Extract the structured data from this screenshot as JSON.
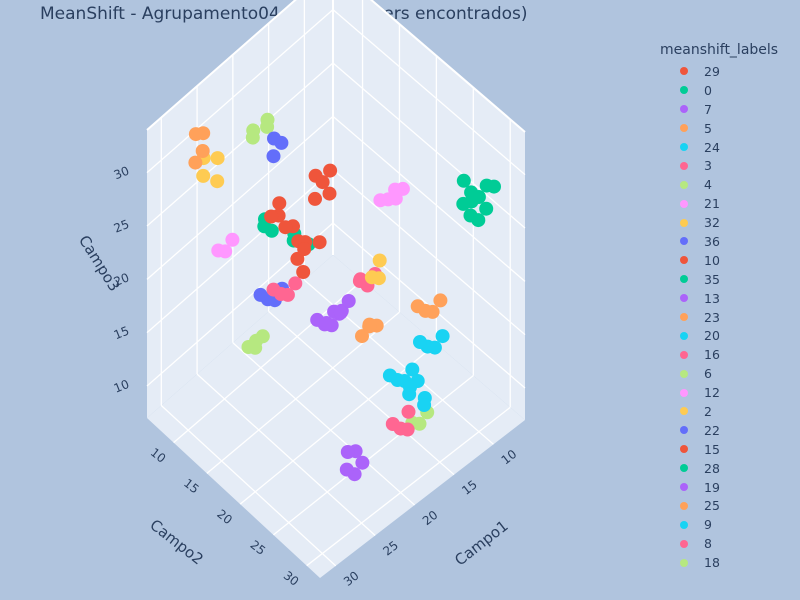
{
  "chart_data": {
    "type": "scatter3d",
    "title": "MeanShift - Agrupamento04 (k=37 clusters encontrados)",
    "xlabel": "Campo1",
    "ylabel": "Campo2",
    "zlabel": "Campo3",
    "x_ticks": [
      "10",
      "15",
      "20",
      "25",
      "30"
    ],
    "y_ticks": [
      "10",
      "15",
      "20",
      "25",
      "30"
    ],
    "z_ticks": [
      "10",
      "15",
      "20",
      "25",
      "30"
    ],
    "xlim": [
      6,
      32
    ],
    "ylim": [
      6,
      32
    ],
    "zlim": [
      7,
      34
    ],
    "grid": true,
    "legend_title": "meanshift_labels",
    "legend_position": "right",
    "series": [
      {
        "name": "29",
        "color": "#ef553b",
        "points": [
          [
            27,
            24,
            31
          ],
          [
            28,
            25,
            31.5
          ],
          [
            29,
            26,
            30.5
          ],
          [
            28,
            24,
            30
          ],
          [
            26,
            25,
            31
          ],
          [
            27,
            23,
            30.5
          ]
        ]
      },
      {
        "name": "0",
        "color": "#00cc96",
        "points": [
          [
            10,
            30,
            29
          ],
          [
            11,
            30,
            30
          ],
          [
            12,
            30,
            29.5
          ],
          [
            10,
            31,
            28.5
          ],
          [
            11,
            31,
            28
          ],
          [
            9,
            30,
            29.5
          ],
          [
            11,
            29,
            30.5
          ],
          [
            10,
            29,
            28
          ],
          [
            12,
            31,
            29
          ],
          [
            9,
            31,
            30
          ]
        ]
      },
      {
        "name": "7",
        "color": "#ab63fa",
        "points": [
          [
            25,
            29,
            11
          ],
          [
            24,
            28,
            12
          ],
          [
            25,
            28,
            12.5
          ],
          [
            24,
            29,
            11.5
          ],
          [
            26,
            29,
            12
          ]
        ]
      },
      {
        "name": "5",
        "color": "#ffa15a",
        "points": [
          [
            28,
            10,
            32
          ],
          [
            28,
            9,
            33
          ],
          [
            29,
            10,
            31.5
          ],
          [
            27,
            9,
            32.5
          ]
        ]
      },
      {
        "name": "24",
        "color": "#19d3f3",
        "points": [
          [
            17,
            28,
            14
          ],
          [
            16,
            29,
            13
          ],
          [
            17,
            30,
            13.5
          ],
          [
            18,
            29,
            14.5
          ],
          [
            16,
            28,
            14
          ]
        ]
      },
      {
        "name": "3",
        "color": "#ff6692",
        "points": [
          [
            17,
            22,
            20
          ],
          [
            18,
            22,
            21
          ],
          [
            17,
            23,
            21.5
          ],
          [
            16,
            22,
            20.5
          ],
          [
            17,
            21,
            20
          ]
        ]
      },
      {
        "name": "4",
        "color": "#b6e880",
        "points": [
          [
            21,
            12,
            32
          ],
          [
            22,
            11,
            31
          ],
          [
            23,
            12,
            31.5
          ],
          [
            22,
            13,
            32.5
          ]
        ]
      },
      {
        "name": "21",
        "color": "#ff97ff",
        "points": [
          [
            18,
            26,
            31
          ],
          [
            17,
            27,
            32
          ],
          [
            18,
            27,
            32.5
          ],
          [
            19,
            26,
            31.5
          ],
          [
            17,
            26,
            30.5
          ]
        ]
      },
      {
        "name": "32",
        "color": "#fecb52",
        "points": [
          [
            25,
            9,
            29
          ],
          [
            26,
            10,
            28
          ],
          [
            27,
            9,
            28.5
          ],
          [
            26,
            8,
            29
          ]
        ]
      },
      {
        "name": "36",
        "color": "#636efa",
        "points": [
          [
            21,
            14,
            31
          ],
          [
            22,
            14,
            32
          ],
          [
            23,
            15,
            31.5
          ]
        ]
      },
      {
        "name": "10",
        "color": "#ef553b",
        "points": [
          [
            22,
            21,
            32
          ],
          [
            23,
            21,
            31
          ],
          [
            22,
            22,
            31.5
          ],
          [
            21,
            21,
            32.5
          ],
          [
            22,
            20,
            32
          ]
        ]
      },
      {
        "name": "35",
        "color": "#00cc96",
        "points": [
          [
            23,
            18,
            26
          ],
          [
            22,
            19,
            25
          ],
          [
            24,
            19,
            26.5
          ]
        ]
      },
      {
        "name": "13",
        "color": "#ab63fa",
        "points": [
          [
            24,
            26,
            24
          ],
          [
            25,
            27,
            25
          ],
          [
            25,
            26,
            24.5
          ],
          [
            24,
            27,
            25.5
          ],
          [
            26,
            26,
            24
          ]
        ]
      },
      {
        "name": "23",
        "color": "#ffa15a",
        "points": [
          [
            13,
            17,
            10
          ],
          [
            12,
            18,
            11
          ],
          [
            13,
            18,
            11.5
          ],
          [
            12,
            17,
            10.5
          ]
        ]
      },
      {
        "name": "20",
        "color": "#19d3f3",
        "points": [
          [
            14,
            23,
            10
          ],
          [
            13,
            24,
            11
          ],
          [
            14,
            24,
            10.5
          ],
          [
            15,
            23,
            11
          ]
        ]
      },
      {
        "name": "16",
        "color": "#ff6692",
        "points": [
          [
            22,
            15,
            18
          ],
          [
            21,
            16,
            19
          ],
          [
            22,
            16,
            18.5
          ],
          [
            23,
            15,
            19
          ]
        ]
      },
      {
        "name": "6",
        "color": "#b6e880",
        "points": [
          [
            30,
            19,
            20
          ],
          [
            29,
            20,
            21
          ],
          [
            30,
            20,
            20.5
          ],
          [
            29,
            19,
            20
          ]
        ]
      },
      {
        "name": "12",
        "color": "#ff97ff",
        "points": [
          [
            23,
            7,
            18
          ],
          [
            22,
            8,
            19
          ],
          [
            23,
            8,
            18.5
          ]
        ]
      },
      {
        "name": "2",
        "color": "#fecb52",
        "points": [
          [
            21,
            27,
            26
          ],
          [
            20,
            27,
            27
          ],
          [
            21,
            28,
            26.5
          ]
        ]
      },
      {
        "name": "22",
        "color": "#636efa",
        "points": [
          [
            20,
            11,
            14
          ],
          [
            19,
            12,
            15
          ],
          [
            20,
            12,
            14.5
          ],
          [
            21,
            11,
            15
          ]
        ]
      },
      {
        "name": "15",
        "color": "#ef553b",
        "points": [
          [
            26,
            19,
            30
          ],
          [
            25,
            20,
            29
          ],
          [
            26,
            20,
            29.5
          ],
          [
            27,
            19,
            30.5
          ],
          [
            25,
            18,
            30
          ]
        ]
      },
      {
        "name": "28",
        "color": "#00cc96",
        "points": [
          [
            26,
            18,
            28
          ],
          [
            27,
            18,
            29
          ],
          [
            26,
            17,
            28.5
          ]
        ]
      },
      {
        "name": "19",
        "color": "#ab63fa",
        "points": [
          [
            18,
            17,
            14
          ],
          [
            17,
            18,
            15
          ],
          [
            18,
            18,
            14.5
          ],
          [
            19,
            17,
            15
          ]
        ]
      },
      {
        "name": "25",
        "color": "#ffa15a",
        "points": [
          [
            15,
            28,
            20
          ],
          [
            14,
            29,
            21
          ],
          [
            15,
            29,
            20.5
          ],
          [
            16,
            28,
            21
          ]
        ]
      },
      {
        "name": "9",
        "color": "#19d3f3",
        "points": [
          [
            11,
            24,
            12
          ],
          [
            10,
            25,
            13
          ],
          [
            11,
            25,
            12.5
          ],
          [
            12,
            24,
            13
          ]
        ]
      },
      {
        "name": "8",
        "color": "#ff6692",
        "points": [
          [
            20,
            30,
            13
          ],
          [
            19,
            30,
            14
          ],
          [
            20,
            31,
            13.5
          ],
          [
            21,
            30,
            14
          ]
        ]
      },
      {
        "name": "18",
        "color": "#b6e880",
        "points": [
          [
            13,
            24,
            6
          ],
          [
            12,
            25,
            7
          ],
          [
            13,
            25,
            6.5
          ]
        ]
      }
    ]
  }
}
